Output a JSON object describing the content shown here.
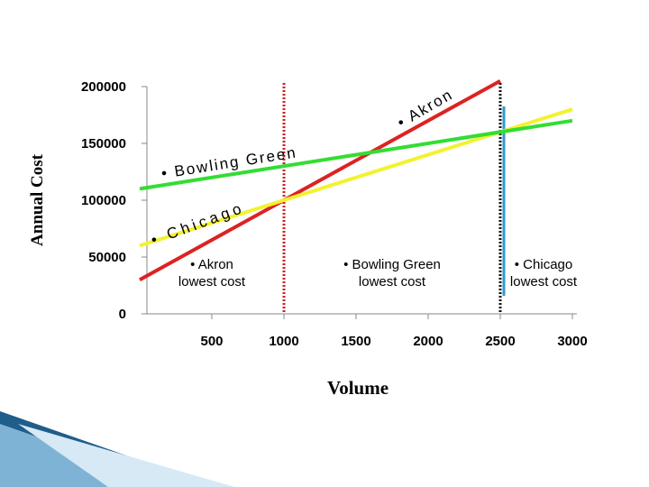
{
  "chart_data": {
    "type": "line",
    "y_axis_label": "Annual Cost",
    "x_axis_label": "Volume",
    "x": [
      0,
      1000,
      2500,
      3000
    ],
    "series": [
      {
        "name": "• Akron",
        "color": "#dd2222",
        "values": [
          30000,
          100000,
          205000,
          null
        ]
      },
      {
        "name": "• Bowling Green",
        "color": "#f2f230",
        "values": [
          60000,
          100000,
          160000,
          180000
        ]
      },
      {
        "name": "• Chicago",
        "color": "#33dd33",
        "values": [
          110000,
          130000,
          160000,
          170000
        ]
      }
    ],
    "xlim": [
      0,
      3000
    ],
    "xticks": [
      500,
      1000,
      1500,
      2000,
      2500,
      3000
    ],
    "ylim": [
      0,
      200000
    ],
    "yticks": [
      0,
      50000,
      100000,
      150000,
      200000
    ],
    "reference_lines": [
      1000,
      2500
    ],
    "annotations": [
      {
        "lines": [
          "• Akron",
          "lowest cost"
        ],
        "x": 500
      },
      {
        "lines": [
          "• Bowling Green",
          "lowest cost"
        ],
        "x": 1750
      },
      {
        "lines": [
          "• Chicago",
          "lowest cost"
        ],
        "x": 2800
      }
    ],
    "grid": false
  }
}
